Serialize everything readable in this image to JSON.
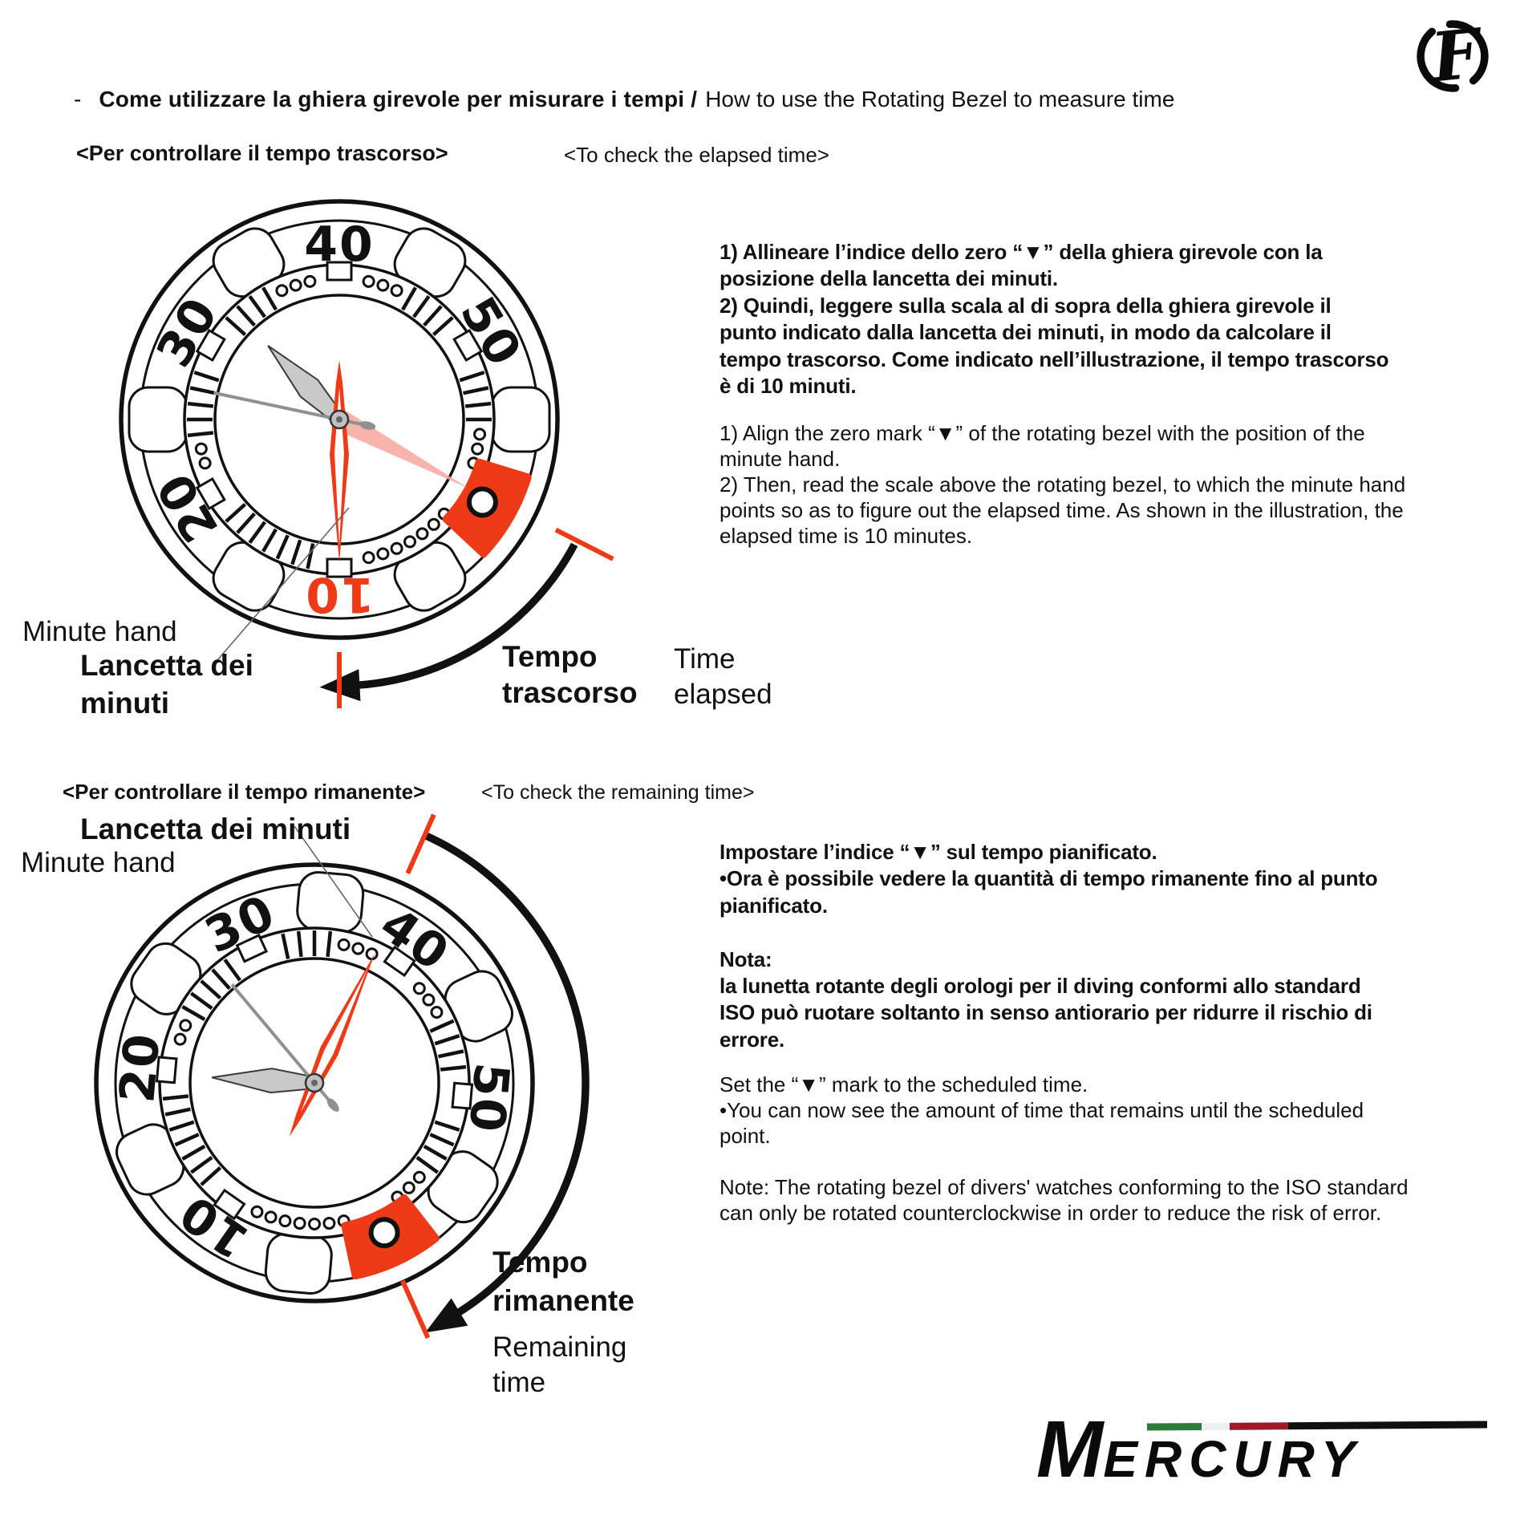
{
  "header": {
    "dash": "-",
    "title_it": "Come utilizzare la ghiera girevole per misurare i tempi /",
    "title_en": "How to use the Rotating Bezel to measure time"
  },
  "elapsed_section": {
    "heading_it": "<Per controllare il tempo trascorso>",
    "heading_en": "<To check the elapsed time>",
    "body_it": "1) Allineare l’indice dello zero “▼” della ghiera girevole con la\nposizione della lancetta dei minuti.\n2) Quindi, leggere sulla scala al di sopra della ghiera girevole il\npunto indicato dalla lancetta dei minuti, in modo da calcolare il\ntempo trascorso. Come indicato nell’illustrazione, il tempo trascorso\nè di 10 minuti.",
    "body_en": "1) Align the zero mark “▼” of the rotating bezel with the position of the\nminute hand.\n2) Then, read the scale above the rotating bezel, to which the minute hand\npoints so as to figure out the elapsed time. As shown in the illustration, the\nelapsed time is 10 minutes.",
    "labels": {
      "minute_hand_en": "Minute hand",
      "minute_hand_it": "Lancetta dei\nminuti",
      "elapsed_it": "Tempo\ntrascorso",
      "elapsed_en": "Time\nelapsed"
    }
  },
  "remaining_section": {
    "heading_it": "<Per controllare il tempo rimanente>",
    "heading_en": "<To check the remaining time>",
    "body_it": "Impostare l’indice “▼” sul tempo pianificato.\n•Ora è possibile vedere la quantità di tempo rimanente fino al punto\npianificato.\n\nNota:\nla lunetta rotante degli orologi per il diving conformi allo standard\nISO può ruotare soltanto in senso antiorario per ridurre il rischio di\nerrore.",
    "body_en": "Set the “▼” mark to the scheduled time.\n•You can now see the amount of time that remains until the scheduled\npoint.\n\nNote: The rotating bezel of divers' watches conforming to the ISO standard\ncan only be rotated counterclockwise in order to reduce the risk of error.",
    "labels": {
      "minute_hand_it": "Lancetta dei minuti",
      "minute_hand_en": "Minute hand",
      "remaining_it": "Tempo\nrimanente",
      "remaining_en": "Remaining\ntime"
    }
  },
  "watches": [
    {
      "name": "elapsed-watch",
      "bezel_numbers": [
        "10",
        "20",
        "30",
        "40",
        "50"
      ],
      "zero_marker_angle": 120,
      "minute_hand_angle": 180,
      "hour_hand_angle": 316,
      "second_hand_angle": 282,
      "ghost_hand_angle": 118,
      "red_ten": true,
      "pink_tail": false,
      "arrow": {
        "from": 118,
        "to": 177,
        "radius": 332
      },
      "red_ticks": [
        {
          "angle": 117,
          "r1": 303,
          "r2": 383
        },
        {
          "angle": 180,
          "r1": 290,
          "r2": 360
        }
      ],
      "elapsed_minutes_shown": "10"
    },
    {
      "name": "remaining-watch",
      "bezel_numbers": [
        "10",
        "20",
        "30",
        "40",
        "50"
      ],
      "zero_marker_angle": 155,
      "minute_hand_angle": 25,
      "hour_hand_angle": 273,
      "second_hand_angle": 320,
      "ghost_hand_angle": null,
      "red_ten": false,
      "pink_tail": true,
      "arrow": {
        "from": 24,
        "to": 149,
        "radius": 338
      },
      "red_ticks": [
        {
          "angle": 24,
          "r1": 286,
          "r2": 366
        },
        {
          "angle": 156,
          "r1": 270,
          "r2": 348
        }
      ]
    }
  ],
  "brand": {
    "monogram": "F",
    "wordmark_initial": "M",
    "wordmark_rest": "ERCURY"
  },
  "colors": {
    "accent_red": "#ee3a17",
    "ghost_pink": "#f6a69e",
    "flag_green": "#2f7a3a",
    "flag_white": "#efefef",
    "flag_red": "#9c1b26",
    "ink": "#111111"
  }
}
